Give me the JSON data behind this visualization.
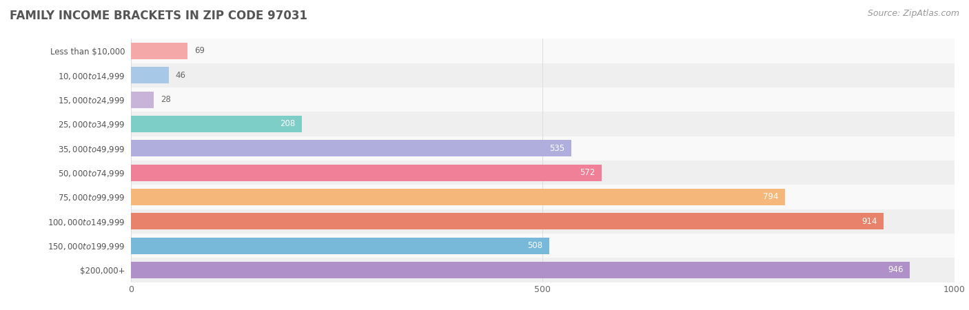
{
  "title": "FAMILY INCOME BRACKETS IN ZIP CODE 97031",
  "source": "Source: ZipAtlas.com",
  "categories": [
    "Less than $10,000",
    "$10,000 to $14,999",
    "$15,000 to $24,999",
    "$25,000 to $34,999",
    "$35,000 to $49,999",
    "$50,000 to $74,999",
    "$75,000 to $99,999",
    "$100,000 to $149,999",
    "$150,000 to $199,999",
    "$200,000+"
  ],
  "values": [
    69,
    46,
    28,
    208,
    535,
    572,
    794,
    914,
    508,
    946
  ],
  "bar_colors": [
    "#f4a9a8",
    "#a8c8e8",
    "#c8b4d8",
    "#7ecec8",
    "#b0aedd",
    "#f08098",
    "#f5b87a",
    "#e8826a",
    "#78b8d8",
    "#b090c8"
  ],
  "xlim": [
    0,
    1000
  ],
  "xticks": [
    0,
    500,
    1000
  ],
  "bar_height": 0.68,
  "row_bg_light": "#f9f9f9",
  "row_bg_dark": "#efefef",
  "label_color_light": "#ffffff",
  "label_color_dark": "#666666",
  "value_threshold": 150,
  "title_fontsize": 12,
  "source_fontsize": 9,
  "cat_fontsize": 8.5,
  "val_fontsize": 8.5,
  "tick_fontsize": 9,
  "title_color": "#555555",
  "source_color": "#999999",
  "cat_label_color": "#555555",
  "grid_color": "#dddddd"
}
